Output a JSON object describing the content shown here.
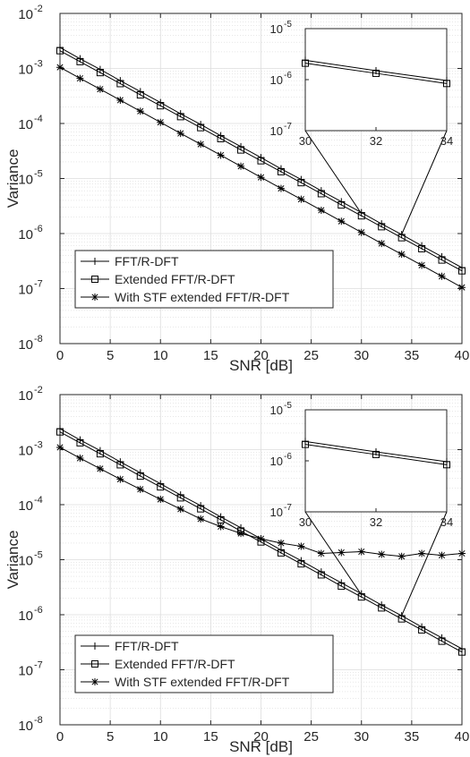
{
  "chart_data": [
    {
      "type": "line",
      "xlabel": "SNR [dB]",
      "ylabel": "Variance",
      "x": [
        0,
        2,
        4,
        6,
        8,
        10,
        12,
        14,
        16,
        18,
        20,
        22,
        24,
        26,
        28,
        30,
        32,
        34,
        36,
        38,
        40
      ],
      "xlim": [
        0,
        40
      ],
      "xticks": [
        "0",
        "5",
        "10",
        "15",
        "20",
        "25",
        "30",
        "35",
        "40"
      ],
      "ylim": [
        1e-08,
        0.01
      ],
      "yscale": "log",
      "ytick_exponents": [
        "-8",
        "-7",
        "-6",
        "-5",
        "-4",
        "-3",
        "-2"
      ],
      "ytick_base": "10",
      "grid": true,
      "legend_position": "bottom-left",
      "series": [
        {
          "name": "FFT/R-DFT",
          "marker": "plus",
          "values": [
            0.0024,
            0.0015,
            0.00096,
            0.0006,
            0.00038,
            0.00024,
            0.00015,
            9.6e-05,
            6e-05,
            3.8e-05,
            2.4e-05,
            1.5e-05,
            9.6e-06,
            6e-06,
            3.8e-06,
            2.4e-06,
            1.5e-06,
            9.6e-07,
            6e-07,
            3.8e-07,
            2.4e-07
          ]
        },
        {
          "name": "Extended FFT/R-DFT",
          "marker": "square",
          "values": [
            0.0021,
            0.00133,
            0.00084,
            0.00053,
            0.00033,
            0.00021,
            0.000133,
            8.4e-05,
            5.3e-05,
            3.3e-05,
            2.1e-05,
            1.33e-05,
            8.4e-06,
            5.3e-06,
            3.3e-06,
            2.1e-06,
            1.33e-06,
            8.4e-07,
            5.3e-07,
            3.3e-07,
            2.1e-07
          ]
        },
        {
          "name": "With STF extended FFT/R-DFT",
          "marker": "asterisk",
          "values": [
            0.00105,
            0.00066,
            0.00042,
            0.000265,
            0.000167,
            0.000105,
            6.6e-05,
            4.2e-05,
            2.65e-05,
            1.67e-05,
            1.05e-05,
            6.6e-06,
            4.2e-06,
            2.65e-06,
            1.67e-06,
            1.05e-06,
            6.6e-07,
            4.2e-07,
            2.65e-07,
            1.67e-07,
            1.05e-07
          ]
        }
      ],
      "inset": {
        "xlim": [
          30,
          34
        ],
        "ylim": [
          1e-07,
          1e-05
        ],
        "xticks": [
          "30",
          "32",
          "34"
        ],
        "ytick_exponents": [
          "-7",
          "-6",
          "-5"
        ],
        "ytick_base": "10"
      }
    },
    {
      "type": "line",
      "xlabel": "SNR [dB]",
      "ylabel": "Variance",
      "x": [
        0,
        2,
        4,
        6,
        8,
        10,
        12,
        14,
        16,
        18,
        20,
        22,
        24,
        26,
        28,
        30,
        32,
        34,
        36,
        38,
        40
      ],
      "xlim": [
        0,
        40
      ],
      "xticks": [
        "0",
        "5",
        "10",
        "15",
        "20",
        "25",
        "30",
        "35",
        "40"
      ],
      "ylim": [
        1e-08,
        0.01
      ],
      "yscale": "log",
      "ytick_exponents": [
        "-8",
        "-7",
        "-6",
        "-5",
        "-4",
        "-3",
        "-2"
      ],
      "ytick_base": "10",
      "grid": true,
      "legend_position": "bottom-left",
      "series": [
        {
          "name": "FFT/R-DFT",
          "marker": "plus",
          "values": [
            0.0024,
            0.0015,
            0.00096,
            0.0006,
            0.00038,
            0.00024,
            0.00015,
            9.6e-05,
            6e-05,
            3.8e-05,
            2.4e-05,
            1.5e-05,
            9.6e-06,
            6e-06,
            3.8e-06,
            2.4e-06,
            1.5e-06,
            9.6e-07,
            6e-07,
            3.8e-07,
            2.4e-07
          ]
        },
        {
          "name": "Extended FFT/R-DFT",
          "marker": "square",
          "values": [
            0.0021,
            0.00133,
            0.00084,
            0.00053,
            0.00033,
            0.00021,
            0.000133,
            8.4e-05,
            5.3e-05,
            3.3e-05,
            2.1e-05,
            1.33e-05,
            8.4e-06,
            5.3e-06,
            3.3e-06,
            2.1e-06,
            1.33e-06,
            8.4e-07,
            5.3e-07,
            3.3e-07,
            2.1e-07
          ]
        },
        {
          "name": "With STF extended FFT/R-DFT",
          "marker": "asterisk",
          "values": [
            0.0011,
            0.0007,
            0.00045,
            0.00029,
            0.00019,
            0.000125,
            8.3e-05,
            5.5e-05,
            4e-05,
            3e-05,
            2.4e-05,
            2e-05,
            1.75e-05,
            1.3e-05,
            1.35e-05,
            1.4e-05,
            1.25e-05,
            1.15e-05,
            1.3e-05,
            1.2e-05,
            1.3e-05
          ]
        }
      ],
      "inset": {
        "xlim": [
          30,
          34
        ],
        "ylim": [
          1e-07,
          1e-05
        ],
        "xticks": [
          "30",
          "32",
          "34"
        ],
        "ytick_exponents": [
          "-7",
          "-6",
          "-5"
        ],
        "ytick_base": "10"
      }
    }
  ]
}
